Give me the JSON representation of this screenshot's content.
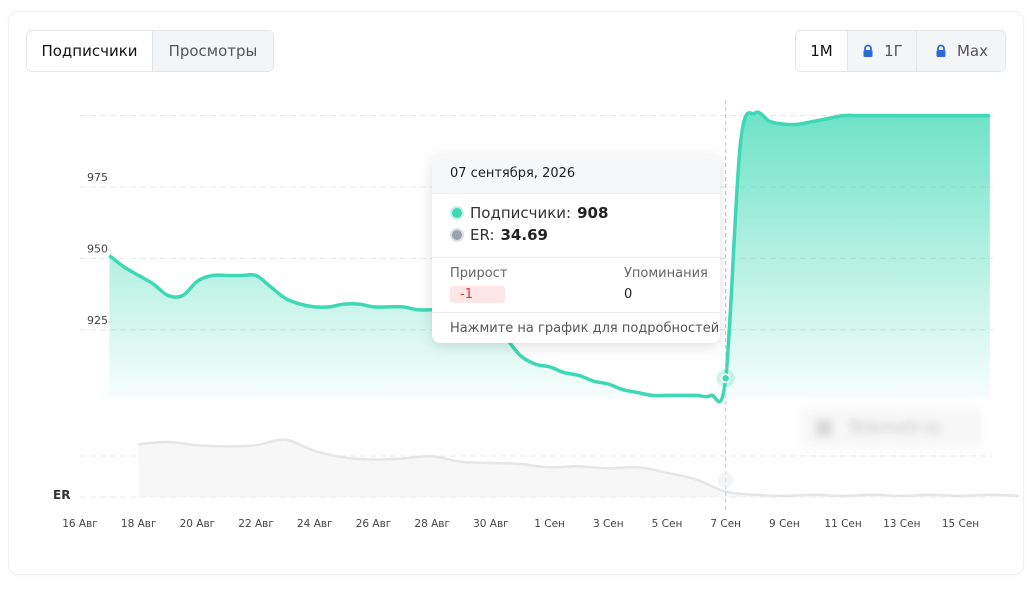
{
  "tabs": {
    "subscribers": "Подписчики",
    "views": "Просмотры"
  },
  "ranges": {
    "month": "1М",
    "year": "1Г",
    "max": "Max"
  },
  "icons": {
    "lock": "lock-icon"
  },
  "colors": {
    "accent": "#3dd9b4",
    "er": "#e6e6e6",
    "lock": "#2b6bd8",
    "negative": "#d23c3c"
  },
  "tooltip": {
    "date": "07 сентября, 2026",
    "subscribers_label": "Подписчики:",
    "subscribers_value": "908",
    "er_label": "ER:",
    "er_value": "34.69",
    "growth_label": "Прирост",
    "growth_value": "-1",
    "mentions_label": "Упоминания",
    "mentions_value": "0",
    "footer": "Нажмите на график для подробностей"
  },
  "watermark": "Telemetr.io",
  "chart_data": {
    "type": "area",
    "x_ticks": [
      "16 Авг",
      "18 Авг",
      "20 Авг",
      "22 Авг",
      "24 Авг",
      "26 Авг",
      "28 Авг",
      "30 Авг",
      "1 Сен",
      "3 Сен",
      "5 Сен",
      "7 Сен",
      "9 Сен",
      "11 Сен",
      "13 Сен",
      "15 Сен"
    ],
    "y_ticks": [
      925,
      950,
      975
    ],
    "ylim": [
      880,
      1000
    ],
    "er_label": "ER",
    "grid": true,
    "highlight": {
      "x": 22.0,
      "y": 908
    },
    "series": [
      {
        "name": "Подписчики",
        "x": [
          1.0,
          1.5,
          2.0,
          2.5,
          3.0,
          3.5,
          4.0,
          4.5,
          5.0,
          5.5,
          6.0,
          6.5,
          7.0,
          7.5,
          8.0,
          8.5,
          9.0,
          9.5,
          10.0,
          10.5,
          11.0,
          11.5,
          12.0,
          12.5,
          13.0,
          13.5,
          14.0,
          14.5,
          15.0,
          15.5,
          16.0,
          16.5,
          17.0,
          17.5,
          18.0,
          18.5,
          19.0,
          19.5,
          20.0,
          20.5,
          21.0,
          21.5,
          22.0,
          22.5,
          23.0,
          23.5,
          24.0,
          24.5,
          25.0,
          25.5,
          26.0,
          26.5,
          27.0,
          27.5,
          28.0,
          28.5,
          29.0,
          29.5,
          30.0,
          30.5,
          31.0
        ],
        "y": [
          951,
          947,
          944,
          941,
          937,
          937,
          942,
          944,
          944,
          944,
          944,
          940,
          936,
          934,
          933,
          933,
          934,
          934,
          933,
          933,
          933,
          932,
          932,
          932,
          931,
          928,
          925,
          922,
          916,
          913,
          912,
          910,
          909,
          907,
          906,
          904,
          903,
          902,
          902,
          902,
          902,
          902,
          908,
          990,
          1001,
          998,
          997,
          997,
          998,
          999,
          1000,
          1000,
          1000,
          1000,
          1000,
          1000,
          1000,
          1000,
          1000,
          1000,
          1000
        ]
      },
      {
        "name": "ER",
        "x": [
          1.0,
          2.0,
          3.0,
          4.0,
          5.0,
          6.0,
          7.0,
          8.0,
          9.0,
          10.0,
          11.0,
          12.0,
          13.0,
          14.0,
          15.0,
          16.0,
          17.0,
          18.0,
          19.0,
          20.0,
          21.0,
          22.0,
          23.0,
          24.0,
          25.0,
          26.0,
          27.0,
          28.0,
          29.0,
          30.0,
          31.0
        ],
        "y": [
          48,
          50,
          47,
          46,
          47,
          52,
          42,
          36,
          34,
          35,
          37,
          32,
          31,
          30,
          27,
          28,
          26,
          27,
          22,
          16,
          5,
          2,
          1,
          2,
          1,
          2,
          1,
          2,
          1,
          2,
          1
        ]
      }
    ]
  }
}
